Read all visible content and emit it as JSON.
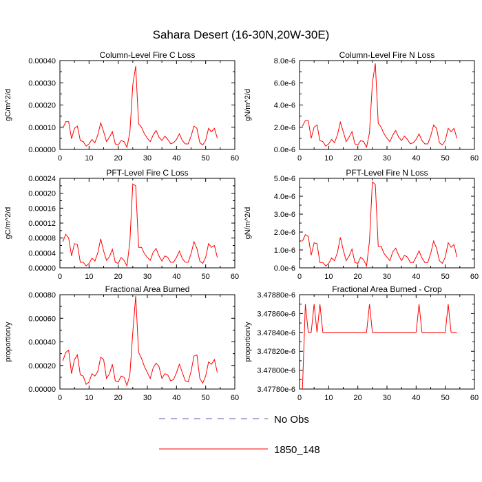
{
  "title": "Sahara Desert (16-30N,20W-30E)",
  "line_color": "#ff0000",
  "legend_dash_color": "#5a5aa8",
  "legend": [
    {
      "label": "No Obs",
      "style": "dashed"
    },
    {
      "label": "1850_148",
      "style": "solid"
    }
  ],
  "chart_data": [
    {
      "type": "line",
      "title": "Column-Level Fire C Loss",
      "ylabel": "gC/m^2/d",
      "xlim": [
        0,
        60
      ],
      "ylim": [
        0,
        0.0004
      ],
      "xticks": [
        "0",
        "10",
        "20",
        "30",
        "40",
        "50",
        "60"
      ],
      "yticks": [
        "0.00000",
        "0.00010",
        "0.00020",
        "0.00030",
        "0.00040"
      ],
      "series": [
        {
          "values": [
            9.5e-05,
            0.000125,
            0.000125,
            4.8e-05,
            9.5e-05,
            0.000105,
            4e-05,
            3.5e-05,
            1.5e-05,
            2.5e-05,
            4.5e-05,
            3e-05,
            6.5e-05,
            0.00012,
            8e-05,
            3.5e-05,
            5.5e-05,
            8e-05,
            2.5e-05,
            2e-05,
            4e-05,
            3.5e-05,
            1e-05,
            7.5e-05,
            0.00029,
            0.000375,
            0.000115,
            0.0001,
            7e-05,
            5e-05,
            3.5e-05,
            6.5e-05,
            8.5e-05,
            5.5e-05,
            4e-05,
            6e-05,
            4.5e-05,
            2.5e-05,
            3e-05,
            4.5e-05,
            7e-05,
            4e-05,
            2.5e-05,
            2.5e-05,
            6e-05,
            0.000105,
            9.5e-05,
            3e-05,
            2e-05,
            4e-05,
            9.5e-05,
            8e-05,
            9.5e-05,
            5e-05
          ]
        }
      ]
    },
    {
      "type": "line",
      "title": "Column-Level Fire N Loss",
      "ylabel": "gN/m^2/d",
      "xlim": [
        0,
        60
      ],
      "ylim": [
        0,
        8e-06
      ],
      "xticks": [
        "0",
        "10",
        "20",
        "30",
        "40",
        "50",
        "60"
      ],
      "yticks": [
        "0.0e-6",
        "2.0e-6",
        "4.0e-6",
        "6.0e-6",
        "8.0e-6"
      ],
      "series": [
        {
          "values": [
            2.1e-06,
            2.6e-06,
            2.6e-06,
            1e-06,
            2e-06,
            2.2e-06,
            8e-07,
            7e-07,
            3e-07,
            5e-07,
            9e-07,
            6e-07,
            1.3e-06,
            2.45e-06,
            1.6e-06,
            7e-07,
            1.1e-06,
            1.6e-06,
            5e-07,
            4e-07,
            8e-07,
            7e-07,
            2e-07,
            1.5e-06,
            6e-06,
            7.75e-06,
            2.35e-06,
            2e-06,
            1.4e-06,
            1e-06,
            7e-07,
            1.3e-06,
            1.7e-06,
            1.1e-06,
            8e-07,
            1.2e-06,
            9e-07,
            5e-07,
            6e-07,
            9e-07,
            1.4e-06,
            8e-07,
            5e-07,
            5e-07,
            1.2e-06,
            2.2e-06,
            1.9e-06,
            6e-07,
            4e-07,
            8e-07,
            1.9e-06,
            1.6e-06,
            1.9e-06,
            1e-06
          ]
        }
      ]
    },
    {
      "type": "line",
      "title": "PFT-Level Fire C Loss",
      "ylabel": "gC/m^2/d",
      "xlim": [
        0,
        60
      ],
      "ylim": [
        0,
        0.00024
      ],
      "xticks": [
        "0",
        "10",
        "20",
        "30",
        "40",
        "50",
        "60"
      ],
      "yticks": [
        "0.00000",
        "0.00004",
        "0.00008",
        "0.00012",
        "0.00016",
        "0.00020",
        "0.00024"
      ],
      "series": [
        {
          "values": [
            7e-05,
            9e-05,
            8e-05,
            3.2e-05,
            6.5e-05,
            6.2e-05,
            1.5e-05,
            1.5e-05,
            5e-06,
            1.2e-05,
            2.6e-05,
            1.8e-05,
            4e-05,
            7.8e-05,
            4.5e-05,
            2e-05,
            3e-05,
            5e-05,
            1.5e-05,
            1.2e-05,
            2.8e-05,
            2e-05,
            5e-06,
            7e-05,
            0.000225,
            0.00022,
            5.5e-05,
            5.5e-05,
            3.8e-05,
            2.8e-05,
            2e-05,
            4.2e-05,
            5.2e-05,
            3.2e-05,
            1.8e-05,
            3.2e-05,
            2.8e-05,
            1.5e-05,
            1.5e-05,
            2.8e-05,
            4.5e-05,
            2.5e-05,
            1.5e-05,
            1.5e-05,
            3.8e-05,
            7e-05,
            5.2e-05,
            1.8e-05,
            1.2e-05,
            2.8e-05,
            6.5e-05,
            5.5e-05,
            6e-05,
            2.8e-05
          ]
        }
      ]
    },
    {
      "type": "line",
      "title": "PFT-Level Fire N Loss",
      "ylabel": "gN/m^2/d",
      "xlim": [
        0,
        60
      ],
      "ylim": [
        0,
        5e-06
      ],
      "xticks": [
        "0",
        "10",
        "20",
        "30",
        "40",
        "50",
        "60"
      ],
      "yticks": [
        "0.0e-6",
        "1.0e-6",
        "2.0e-6",
        "3.0e-6",
        "4.0e-6",
        "5.0e-6"
      ],
      "series": [
        {
          "values": [
            1.5e-06,
            1.85e-06,
            1.75e-06,
            7e-07,
            1.4e-06,
            1.35e-06,
            3e-07,
            3e-07,
            1e-07,
            2.5e-07,
            5.5e-07,
            4e-07,
            8.5e-07,
            1.7e-06,
            1e-06,
            4e-07,
            6.5e-07,
            1.05e-06,
            3e-07,
            2.5e-07,
            6e-07,
            4.5e-07,
            1e-07,
            1.5e-06,
            4.8e-06,
            4.65e-06,
            1.2e-06,
            1.2e-06,
            8e-07,
            6e-07,
            4e-07,
            9e-07,
            1.1e-06,
            7e-07,
            4e-07,
            7e-07,
            6e-07,
            3e-07,
            3e-07,
            6e-07,
            9.5e-07,
            5.5e-07,
            3e-07,
            3e-07,
            8e-07,
            1.5e-06,
            1.1e-06,
            4e-07,
            2.5e-07,
            6e-07,
            1.4e-06,
            1.15e-06,
            1.3e-06,
            6e-07
          ]
        }
      ]
    },
    {
      "type": "line",
      "title": "Fractional Area Burned",
      "ylabel": "proportion/y",
      "xlim": [
        0,
        60
      ],
      "ylim": [
        0,
        0.0008
      ],
      "xticks": [
        "0",
        "10",
        "20",
        "30",
        "40",
        "50",
        "60"
      ],
      "yticks": [
        "0.00000",
        "0.00020",
        "0.00040",
        "0.00060",
        "0.00080"
      ],
      "series": [
        {
          "values": [
            0.00024,
            0.00031,
            0.00033,
            0.00013,
            0.00025,
            0.00029,
            0.00012,
            0.00011,
            4e-05,
            6e-05,
            0.00013,
            0.00011,
            0.00015,
            0.00027,
            0.00025,
            9e-05,
            0.00013,
            0.00021,
            7e-05,
            6e-05,
            0.00011,
            0.0001,
            3e-05,
            0.00012,
            0.00048,
            0.00079,
            0.00031,
            0.00026,
            0.00019,
            0.00014,
            9e-05,
            0.00018,
            0.00022,
            0.00019,
            9e-05,
            0.00013,
            0.00012,
            7e-05,
            8e-05,
            0.00014,
            0.00021,
            0.00014,
            7e-05,
            6e-05,
            0.00015,
            0.00028,
            0.00029,
            9e-05,
            5e-05,
            0.00011,
            0.00023,
            0.00021,
            0.00025,
            0.00014
          ]
        }
      ]
    },
    {
      "type": "line",
      "title": "Fractional Area Burned - Crop",
      "ylabel": "proportion/y",
      "xlim": [
        0,
        60
      ],
      "ylim": [
        3.4778e-06,
        3.4788e-06
      ],
      "xticks": [
        "0",
        "10",
        "20",
        "30",
        "40",
        "50",
        "60"
      ],
      "yticks": [
        "3.47780e-6",
        "3.47800e-6",
        "3.47820e-6",
        "3.47840e-6",
        "3.47860e-6",
        "3.47880e-6"
      ],
      "series": [
        {
          "values": [
            3.47779e-06,
            3.4787e-06,
            3.4784e-06,
            3.4784e-06,
            3.4787e-06,
            3.4784e-06,
            3.4787e-06,
            3.4784e-06,
            3.4784e-06,
            3.4784e-06,
            3.4784e-06,
            3.4784e-06,
            3.4784e-06,
            3.4784e-06,
            3.4784e-06,
            3.4784e-06,
            3.4784e-06,
            3.4784e-06,
            3.4784e-06,
            3.4784e-06,
            3.4784e-06,
            3.4784e-06,
            3.4784e-06,
            3.4787e-06,
            3.4784e-06,
            3.4784e-06,
            3.4784e-06,
            3.4784e-06,
            3.4784e-06,
            3.4784e-06,
            3.4784e-06,
            3.4784e-06,
            3.4784e-06,
            3.4784e-06,
            3.4784e-06,
            3.4784e-06,
            3.4784e-06,
            3.4784e-06,
            3.4784e-06,
            3.4784e-06,
            3.4787e-06,
            3.4784e-06,
            3.4784e-06,
            3.4784e-06,
            3.4784e-06,
            3.4784e-06,
            3.4784e-06,
            3.4784e-06,
            3.4784e-06,
            3.4784e-06,
            3.4787e-06,
            3.4784e-06,
            3.4784e-06,
            3.4784e-06
          ]
        }
      ]
    }
  ]
}
